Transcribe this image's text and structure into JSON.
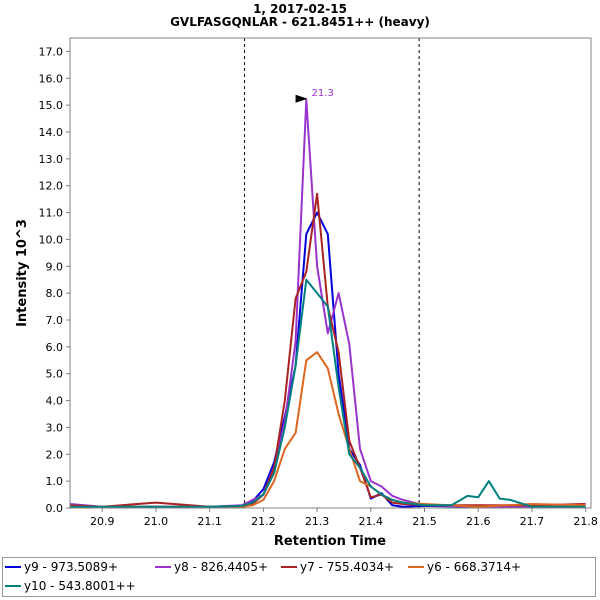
{
  "chart_data": {
    "type": "line",
    "title": "1, 2017-02-15",
    "subtitle": "GVLFASGQNLAR - 621.8451++ (heavy)",
    "xlabel": "Retention Time",
    "ylabel": "Intensity 10^3",
    "xlim": [
      20.84,
      21.81
    ],
    "ylim": [
      0,
      17.5
    ],
    "x_ticks": [
      "20.9",
      "21.0",
      "21.1",
      "21.2",
      "21.3",
      "21.4",
      "21.5",
      "21.6",
      "21.7",
      "21.8"
    ],
    "y_ticks": [
      "0.0",
      "1.0",
      "2.0",
      "3.0",
      "4.0",
      "5.0",
      "6.0",
      "7.0",
      "8.0",
      "9.0",
      "10.0",
      "11.0",
      "12.0",
      "13.0",
      "14.0",
      "15.0",
      "16.0",
      "17.0"
    ],
    "grid": false,
    "legend_position": "bottom",
    "vlines": [
      21.165,
      21.49
    ],
    "annotation": {
      "label": "21.3",
      "x": 21.286,
      "y": 15.2,
      "color": "#9933cc"
    },
    "series": [
      {
        "name": "y9 - 973.5089+",
        "color": "#0000dd",
        "x": [
          20.84,
          20.9,
          21.0,
          21.1,
          21.16,
          21.18,
          21.2,
          21.22,
          21.24,
          21.26,
          21.28,
          21.3,
          21.32,
          21.34,
          21.36,
          21.38,
          21.4,
          21.42,
          21.44,
          21.46,
          21.5,
          21.6,
          21.7,
          21.8
        ],
        "y": [
          0.1,
          0.05,
          0.05,
          0.05,
          0.08,
          0.25,
          0.7,
          1.7,
          3.4,
          5.3,
          10.2,
          11.0,
          10.2,
          5.0,
          2.2,
          1.6,
          0.35,
          0.55,
          0.1,
          0.05,
          0.08,
          0.05,
          0.05,
          0.05
        ]
      },
      {
        "name": "y8 - 826.4405+",
        "color": "#9933cc",
        "x": [
          20.84,
          20.9,
          21.0,
          21.1,
          21.16,
          21.18,
          21.2,
          21.22,
          21.24,
          21.26,
          21.28,
          21.3,
          21.32,
          21.34,
          21.36,
          21.38,
          21.4,
          21.42,
          21.44,
          21.46,
          21.5,
          21.6,
          21.7,
          21.8
        ],
        "y": [
          0.15,
          0.05,
          0.05,
          0.05,
          0.1,
          0.3,
          0.5,
          1.5,
          3.2,
          6.2,
          15.2,
          9.0,
          6.5,
          8.0,
          6.1,
          2.2,
          1.0,
          0.8,
          0.45,
          0.3,
          0.1,
          0.05,
          0.05,
          0.1
        ]
      },
      {
        "name": "y7 - 755.4034+",
        "color": "#aa2222",
        "x": [
          20.84,
          20.9,
          21.0,
          21.1,
          21.16,
          21.18,
          21.2,
          21.22,
          21.24,
          21.26,
          21.28,
          21.3,
          21.32,
          21.34,
          21.36,
          21.38,
          21.4,
          21.42,
          21.44,
          21.46,
          21.5,
          21.6,
          21.7,
          21.8
        ],
        "y": [
          0.1,
          0.05,
          0.2,
          0.05,
          0.05,
          0.15,
          0.5,
          1.5,
          4.0,
          7.8,
          8.8,
          11.7,
          7.5,
          5.8,
          2.5,
          1.5,
          0.4,
          0.5,
          0.2,
          0.15,
          0.1,
          0.1,
          0.1,
          0.15
        ]
      },
      {
        "name": "y6 - 668.3714+",
        "color": "#dd6622",
        "x": [
          20.84,
          20.9,
          21.0,
          21.1,
          21.16,
          21.18,
          21.2,
          21.22,
          21.24,
          21.26,
          21.28,
          21.3,
          21.32,
          21.34,
          21.36,
          21.38,
          21.4,
          21.42,
          21.44,
          21.46,
          21.5,
          21.6,
          21.7,
          21.8
        ],
        "y": [
          0.05,
          0.05,
          0.05,
          0.05,
          0.05,
          0.1,
          0.3,
          1.0,
          2.2,
          2.8,
          5.5,
          5.8,
          5.2,
          3.5,
          2.2,
          1.0,
          0.8,
          0.5,
          0.3,
          0.2,
          0.15,
          0.05,
          0.15,
          0.1
        ]
      },
      {
        "name": "y10 - 543.8001++",
        "color": "#008080",
        "x": [
          20.84,
          20.9,
          21.0,
          21.1,
          21.16,
          21.18,
          21.2,
          21.22,
          21.24,
          21.26,
          21.28,
          21.3,
          21.32,
          21.34,
          21.36,
          21.38,
          21.4,
          21.42,
          21.44,
          21.46,
          21.5,
          21.55,
          21.58,
          21.6,
          21.62,
          21.64,
          21.66,
          21.7,
          21.8
        ],
        "y": [
          0.05,
          0.05,
          0.05,
          0.05,
          0.08,
          0.2,
          0.5,
          1.3,
          3.0,
          5.3,
          8.5,
          8.0,
          7.5,
          4.5,
          2.0,
          1.5,
          0.8,
          0.5,
          0.3,
          0.2,
          0.1,
          0.1,
          0.45,
          0.4,
          1.0,
          0.35,
          0.3,
          0.05,
          0.05
        ]
      }
    ]
  }
}
